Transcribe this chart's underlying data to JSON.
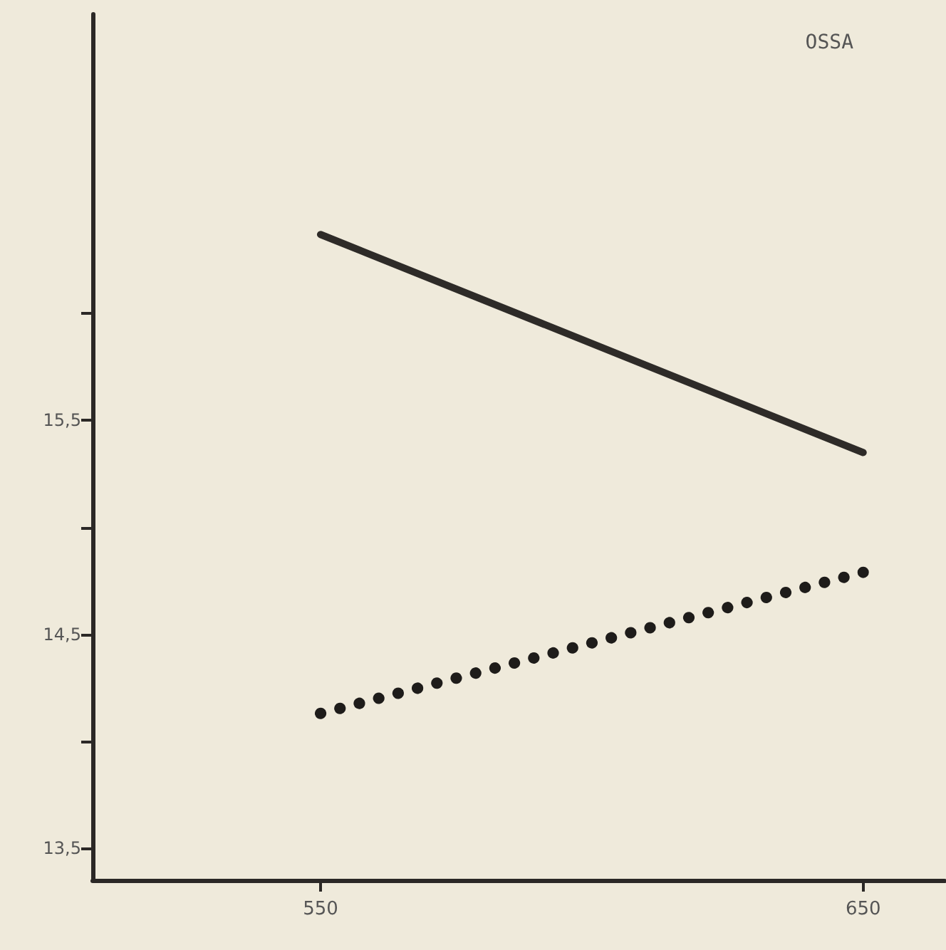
{
  "chart_data": {
    "type": "line",
    "title": "OSSA",
    "x": [
      550,
      650
    ],
    "series": [
      {
        "color": "#2e2b28",
        "values": [
          16.37,
          15.35
        ],
        "line_style": "solid"
      },
      {
        "color": "#1e1c1a",
        "values": [
          14.13,
          14.79
        ],
        "line_style": "dotted"
      }
    ],
    "xlim": [
      508,
      665
    ],
    "xticks": [
      550,
      650
    ],
    "ylim": [
      13.35,
      17.4
    ],
    "yticks": [
      {
        "value": 13.5,
        "label": "13,5"
      },
      {
        "value": 14,
        "label": null
      },
      {
        "value": 14.5,
        "label": "14,5"
      },
      {
        "value": 15,
        "label": null
      },
      {
        "value": 15.5,
        "label": "15,5"
      },
      {
        "value": 16,
        "label": null
      }
    ],
    "grid": false,
    "marker": "none"
  }
}
